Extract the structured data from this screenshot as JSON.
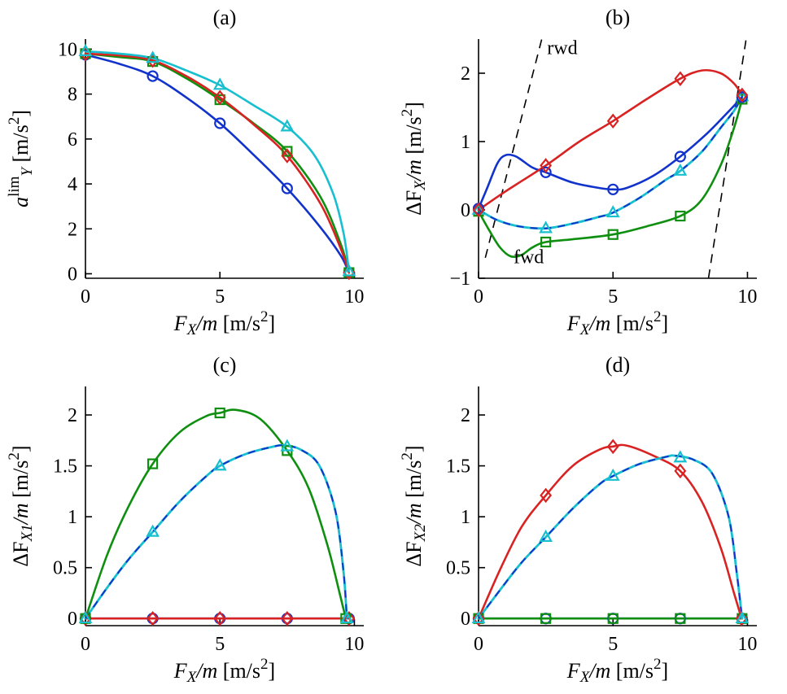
{
  "page": {
    "background": "#ffffff"
  },
  "colors": {
    "blue": "#1133cc",
    "green": "#0f8f0f",
    "red": "#d92222",
    "cyan": "#17bfcf",
    "axis": "#000000",
    "dash_overlay": "#1133cc"
  },
  "chart_data": [
    {
      "id": "a",
      "type": "line",
      "title": [
        {
          "t": "(a)"
        }
      ],
      "xlabel": [
        {
          "t": "F",
          "i": 1
        },
        {
          "t": "X",
          "i": 1,
          "sub": 1
        },
        {
          "t": "/m",
          "i": 1
        },
        {
          "t": " [m/s"
        },
        {
          "t": "2",
          "sup": 1
        },
        {
          "t": "]"
        }
      ],
      "ylabel": [
        {
          "t": "a",
          "i": 1
        },
        {
          "t": "lim",
          "sup": 1
        },
        {
          "t": "Y",
          "i": 1,
          "sub": 1
        },
        {
          "t": " [m/s"
        },
        {
          "t": "2",
          "sup": 1
        },
        {
          "t": "]"
        }
      ],
      "xlim": [
        0,
        10.35
      ],
      "ylim": [
        -0.2,
        10.45
      ],
      "xticks": [
        [
          0,
          "0"
        ],
        [
          5,
          "5"
        ],
        [
          10,
          "10"
        ]
      ],
      "yticks": [
        [
          0,
          "0"
        ],
        [
          2,
          "2"
        ],
        [
          4,
          "4"
        ],
        [
          6,
          "6"
        ],
        [
          8,
          "8"
        ],
        [
          10,
          "10"
        ]
      ],
      "series": [
        {
          "name": "blue-circle",
          "color": "#1133cc",
          "marker": "circle",
          "x": [
            0,
            1.25,
            2.5,
            3.75,
            5,
            6.25,
            7.5,
            8.75,
            9.5,
            9.8
          ],
          "y": [
            9.75,
            9.35,
            8.8,
            7.85,
            6.7,
            5.3,
            3.8,
            2.05,
            0.8,
            0.05
          ],
          "mx": [
            0,
            2.5,
            5,
            7.5,
            9.8
          ],
          "my": [
            9.75,
            8.8,
            6.7,
            3.8,
            0.05
          ]
        },
        {
          "name": "green-square",
          "color": "#0f8f0f",
          "marker": "square",
          "x": [
            0,
            1.25,
            2.5,
            3.75,
            5,
            6.25,
            7.5,
            8.75,
            9.5,
            9.8
          ],
          "y": [
            9.8,
            9.65,
            9.45,
            8.7,
            7.75,
            6.7,
            5.45,
            3.4,
            1.3,
            0.05
          ],
          "mx": [
            0,
            2.5,
            5,
            7.5,
            9.8
          ],
          "my": [
            9.8,
            9.45,
            7.75,
            5.45,
            0.05
          ]
        },
        {
          "name": "red-diamond",
          "color": "#d92222",
          "marker": "diamond",
          "x": [
            0,
            1.25,
            2.5,
            3.75,
            5,
            6.25,
            7.5,
            8.75,
            9.5,
            9.8
          ],
          "y": [
            9.8,
            9.72,
            9.5,
            8.8,
            7.85,
            6.65,
            5.25,
            3.1,
            1.1,
            0.05
          ],
          "mx": [
            0,
            2.5,
            5,
            7.5,
            9.8
          ],
          "my": [
            9.8,
            9.5,
            7.85,
            5.25,
            0.05
          ]
        },
        {
          "name": "cyan-triangle",
          "color": "#17bfcf",
          "marker": "triangle",
          "x": [
            0,
            1.25,
            2.5,
            3.75,
            5,
            6.25,
            7.5,
            8.5,
            9.2,
            9.6,
            9.8
          ],
          "y": [
            9.9,
            9.8,
            9.6,
            9.05,
            8.4,
            7.5,
            6.55,
            5.3,
            3.6,
            1.8,
            0.1
          ],
          "mx": [
            0,
            2.5,
            5,
            7.5,
            9.8
          ],
          "my": [
            9.9,
            9.6,
            8.4,
            6.55,
            0.1
          ]
        }
      ]
    },
    {
      "id": "b",
      "type": "line",
      "title": [
        {
          "t": "(b)"
        }
      ],
      "xlabel": [
        {
          "t": "F",
          "i": 1
        },
        {
          "t": "X",
          "i": 1,
          "sub": 1
        },
        {
          "t": "/m",
          "i": 1
        },
        {
          "t": " [m/s"
        },
        {
          "t": "2",
          "sup": 1
        },
        {
          "t": "]"
        }
      ],
      "ylabel": [
        {
          "t": "ΔF",
          "i": 0
        },
        {
          "t": "X",
          "i": 1,
          "sub": 1
        },
        {
          "t": "/m",
          "i": 1
        },
        {
          "t": " [m/s"
        },
        {
          "t": "2",
          "sup": 1
        },
        {
          "t": "]"
        }
      ],
      "xlim": [
        0,
        10.35
      ],
      "ylim": [
        -1,
        2.5
      ],
      "xticks": [
        [
          0,
          "0"
        ],
        [
          5,
          "5"
        ],
        [
          10,
          "10"
        ]
      ],
      "yticks": [
        [
          -1,
          "−1"
        ],
        [
          0,
          "0"
        ],
        [
          1,
          "1"
        ],
        [
          2,
          "2"
        ]
      ],
      "guides": [
        {
          "name": "rwd-limit-line",
          "pts": [
            [
              0.25,
              -0.7
            ],
            [
              2.35,
              2.5
            ]
          ]
        },
        {
          "name": "fwd-limit-line",
          "pts": [
            [
              8.55,
              -1.0
            ],
            [
              9.95,
              2.5
            ]
          ]
        }
      ],
      "annotations": [
        {
          "text": "rwd",
          "x": 2.55,
          "y": 2.28
        },
        {
          "text": "fwd",
          "x": 1.3,
          "y": -0.78
        }
      ],
      "series": [
        {
          "name": "green-square",
          "color": "#0f8f0f",
          "marker": "square",
          "x": [
            0,
            0.4,
            0.8,
            1.2,
            1.6,
            2.0,
            2.5,
            3.5,
            5,
            6.25,
            7.5,
            8.3,
            9.0,
            9.5,
            9.8
          ],
          "y": [
            -0.02,
            -0.3,
            -0.55,
            -0.68,
            -0.66,
            -0.55,
            -0.47,
            -0.43,
            -0.36,
            -0.24,
            -0.09,
            0.15,
            0.65,
            1.2,
            1.62
          ],
          "mx": [
            0,
            2.5,
            5,
            7.5,
            9.8
          ],
          "my": [
            -0.02,
            -0.47,
            -0.36,
            -0.09,
            1.62
          ]
        },
        {
          "name": "cyan-triangle",
          "color": "#17bfcf",
          "marker": "triangle",
          "dash_overlay": "#1133cc",
          "x": [
            0,
            0.7,
            1.5,
            2.5,
            3.5,
            4.5,
            5,
            6,
            7,
            7.5,
            8.3,
            9.0,
            9.5,
            9.8
          ],
          "y": [
            0,
            -0.15,
            -0.24,
            -0.27,
            -0.2,
            -0.1,
            -0.04,
            0.18,
            0.45,
            0.57,
            0.85,
            1.2,
            1.45,
            1.66
          ],
          "mx": [
            0,
            2.5,
            5,
            7.5,
            9.8
          ],
          "my": [
            0,
            -0.27,
            -0.04,
            0.57,
            1.66
          ]
        },
        {
          "name": "blue-circle",
          "color": "#1133cc",
          "marker": "circle",
          "x": [
            0,
            0.3,
            0.7,
            1.0,
            1.4,
            2.0,
            2.5,
            3.5,
            4.5,
            5,
            5.5,
            6.5,
            7.5,
            8.5,
            9.2,
            9.8
          ],
          "y": [
            0.02,
            0.3,
            0.68,
            0.8,
            0.78,
            0.62,
            0.55,
            0.4,
            0.32,
            0.3,
            0.32,
            0.5,
            0.78,
            1.12,
            1.4,
            1.65
          ],
          "mx": [
            0,
            2.5,
            5,
            7.5,
            9.8
          ],
          "my": [
            0.02,
            0.55,
            0.3,
            0.78,
            1.65
          ]
        },
        {
          "name": "red-diamond",
          "color": "#d92222",
          "marker": "diamond",
          "x": [
            0,
            1,
            2.5,
            3.75,
            5,
            6.25,
            7.5,
            8.3,
            9,
            9.5,
            9.8
          ],
          "y": [
            0,
            0.27,
            0.65,
            1.0,
            1.3,
            1.62,
            1.92,
            2.04,
            2.0,
            1.85,
            1.68
          ],
          "mx": [
            0,
            2.5,
            5,
            7.5,
            9.8
          ],
          "my": [
            0,
            0.65,
            1.3,
            1.92,
            1.68
          ]
        }
      ]
    },
    {
      "id": "c",
      "type": "line",
      "title": [
        {
          "t": "(c)"
        }
      ],
      "xlabel": [
        {
          "t": "F",
          "i": 1
        },
        {
          "t": "X",
          "i": 1,
          "sub": 1
        },
        {
          "t": "/m",
          "i": 1
        },
        {
          "t": " [m/s"
        },
        {
          "t": "2",
          "sup": 1
        },
        {
          "t": "]"
        }
      ],
      "ylabel": [
        {
          "t": "ΔF",
          "i": 0
        },
        {
          "t": "X1",
          "i": 1,
          "sub": 1
        },
        {
          "t": "/m",
          "i": 1
        },
        {
          "t": " [m/s"
        },
        {
          "t": "2",
          "sup": 1
        },
        {
          "t": "]"
        }
      ],
      "xlim": [
        0,
        10.35
      ],
      "ylim": [
        -0.07,
        2.28
      ],
      "xticks": [
        [
          0,
          "0"
        ],
        [
          5,
          "5"
        ],
        [
          10,
          "10"
        ]
      ],
      "yticks": [
        [
          0,
          "0"
        ],
        [
          0.5,
          "0.5"
        ],
        [
          1,
          "1"
        ],
        [
          1.5,
          "1.5"
        ],
        [
          2,
          "2"
        ]
      ],
      "series": [
        {
          "name": "blue-circle",
          "color": "#1133cc",
          "marker": "circle",
          "x": [
            0,
            9.8
          ],
          "y": [
            0,
            0
          ],
          "mx": [
            0,
            2.5,
            5,
            7.5,
            9.8
          ],
          "my": [
            0,
            0,
            0,
            0,
            0
          ]
        },
        {
          "name": "red-diamond",
          "color": "#d92222",
          "marker": "diamond",
          "x": [
            0,
            9.8
          ],
          "y": [
            0,
            0
          ],
          "mx": [
            0,
            2.5,
            5,
            7.5,
            9.8
          ],
          "my": [
            0,
            0,
            0,
            0,
            0
          ]
        },
        {
          "name": "green-square",
          "color": "#0f8f0f",
          "marker": "square",
          "x": [
            0,
            0.8,
            1.6,
            2.5,
            3.5,
            4.5,
            5,
            5.6,
            6.5,
            7.5,
            8.3,
            9.0,
            9.45,
            9.68
          ],
          "y": [
            0,
            0.62,
            1.1,
            1.52,
            1.83,
            1.99,
            2.02,
            2.05,
            1.96,
            1.65,
            1.28,
            0.72,
            0.25,
            0
          ],
          "mx": [
            0,
            2.5,
            5,
            7.5,
            9.68
          ],
          "my": [
            0,
            1.52,
            2.02,
            1.65,
            0
          ]
        },
        {
          "name": "cyan-triangle",
          "color": "#17bfcf",
          "marker": "triangle",
          "dash_overlay": "#1133cc",
          "x": [
            0,
            0.8,
            1.6,
            2.5,
            3.5,
            4.5,
            5,
            6,
            7,
            7.4,
            8,
            8.7,
            9.3,
            9.6,
            9.72
          ],
          "y": [
            0,
            0.3,
            0.58,
            0.85,
            1.15,
            1.4,
            1.5,
            1.62,
            1.69,
            1.7,
            1.66,
            1.5,
            1.05,
            0.45,
            0
          ],
          "mx": [
            0,
            2.5,
            5,
            7.5,
            9.72
          ],
          "my": [
            0,
            0.85,
            1.5,
            1.69,
            0
          ]
        }
      ]
    },
    {
      "id": "d",
      "type": "line",
      "title": [
        {
          "t": "(d)"
        }
      ],
      "xlabel": [
        {
          "t": "F",
          "i": 1
        },
        {
          "t": "X",
          "i": 1,
          "sub": 1
        },
        {
          "t": "/m",
          "i": 1
        },
        {
          "t": " [m/s"
        },
        {
          "t": "2",
          "sup": 1
        },
        {
          "t": "]"
        }
      ],
      "ylabel": [
        {
          "t": "ΔF",
          "i": 0
        },
        {
          "t": "X2",
          "i": 1,
          "sub": 1
        },
        {
          "t": "/m",
          "i": 1
        },
        {
          "t": " [m/s"
        },
        {
          "t": "2",
          "sup": 1
        },
        {
          "t": "]"
        }
      ],
      "xlim": [
        0,
        10.35
      ],
      "ylim": [
        -0.07,
        2.28
      ],
      "xticks": [
        [
          0,
          "0"
        ],
        [
          5,
          "5"
        ],
        [
          10,
          "10"
        ]
      ],
      "yticks": [
        [
          0,
          "0"
        ],
        [
          0.5,
          "0.5"
        ],
        [
          1,
          "1"
        ],
        [
          1.5,
          "1.5"
        ],
        [
          2,
          "2"
        ]
      ],
      "series": [
        {
          "name": "blue-circle",
          "color": "#1133cc",
          "marker": "circle",
          "x": [
            0,
            9.8
          ],
          "y": [
            0,
            0
          ],
          "mx": [
            0,
            2.5,
            5,
            7.5,
            9.8
          ],
          "my": [
            0,
            0,
            0,
            0,
            0
          ]
        },
        {
          "name": "green-square",
          "color": "#0f8f0f",
          "marker": "square",
          "x": [
            0,
            9.8
          ],
          "y": [
            0,
            0
          ],
          "mx": [
            0,
            2.5,
            5,
            7.5,
            9.8
          ],
          "my": [
            0,
            0,
            0,
            0,
            0
          ]
        },
        {
          "name": "red-diamond",
          "color": "#d92222",
          "marker": "diamond",
          "x": [
            0,
            0.8,
            1.6,
            2.5,
            3.5,
            4.5,
            5,
            5.5,
            6.5,
            7.5,
            8.3,
            9.0,
            9.5,
            9.78
          ],
          "y": [
            0,
            0.48,
            0.9,
            1.21,
            1.5,
            1.66,
            1.69,
            1.7,
            1.6,
            1.45,
            1.15,
            0.7,
            0.25,
            0
          ],
          "mx": [
            0,
            2.5,
            5,
            7.5,
            9.78
          ],
          "my": [
            0,
            1.21,
            1.69,
            1.45,
            0
          ]
        },
        {
          "name": "cyan-triangle",
          "color": "#17bfcf",
          "marker": "triangle",
          "dash_overlay": "#1133cc",
          "x": [
            0,
            0.8,
            1.6,
            2.5,
            3.5,
            4.5,
            5,
            6,
            7,
            7.3,
            8,
            8.7,
            9.3,
            9.6,
            9.8
          ],
          "y": [
            0,
            0.28,
            0.55,
            0.8,
            1.08,
            1.32,
            1.4,
            1.52,
            1.59,
            1.6,
            1.56,
            1.42,
            1.0,
            0.45,
            0
          ],
          "mx": [
            0,
            2.5,
            5,
            7.5,
            9.8
          ],
          "my": [
            0,
            0.8,
            1.4,
            1.58,
            0
          ]
        }
      ]
    }
  ]
}
